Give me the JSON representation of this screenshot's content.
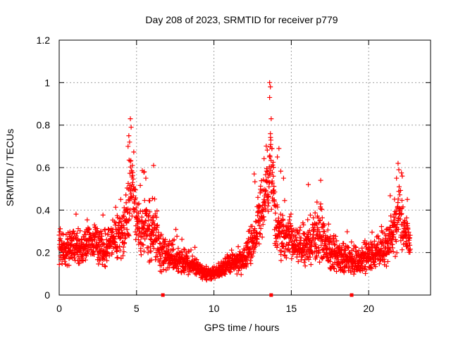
{
  "chart_data": {
    "type": "scatter",
    "title": "Day 208 of 2023, SRMTID for receiver p779",
    "xlabel": "GPS time / hours",
    "ylabel": "SRMTID / TECUs",
    "xlim": [
      0,
      24
    ],
    "ylim": [
      0,
      1.2
    ],
    "xticks": [
      0,
      5,
      10,
      15,
      20
    ],
    "xtick_labels": [
      "0",
      "5",
      "10",
      "15",
      "20"
    ],
    "yticks": [
      0,
      0.2,
      0.4,
      0.6,
      0.8,
      1.0,
      1.2
    ],
    "ytick_labels": [
      "0",
      "0.2",
      "0.4",
      "0.6",
      "0.8",
      "1",
      "1.2"
    ],
    "grid": true,
    "marker": "plus",
    "zero_marker": "square",
    "color": "#ff0000",
    "series": [
      {
        "name": "SRMTID",
        "sampling_hours": 0.01,
        "profile": {
          "x": [
            0,
            0.5,
            1,
            1.5,
            2,
            2.5,
            3,
            3.5,
            4,
            4.3,
            4.5,
            4.7,
            5,
            5.3,
            5.5,
            6,
            6.2,
            6.5,
            7,
            7.5,
            8,
            8.5,
            9,
            9.5,
            10,
            10.5,
            11,
            11.5,
            12,
            12.5,
            13,
            13.3,
            13.5,
            13.7,
            14,
            14.3,
            14.5,
            15,
            15.5,
            16,
            16.3,
            16.5,
            17,
            17.5,
            18,
            18.5,
            19,
            19.5,
            20,
            20.5,
            21,
            21.5,
            21.8,
            22,
            22.3,
            22.7
          ],
          "y": [
            0.2,
            0.22,
            0.23,
            0.22,
            0.25,
            0.24,
            0.22,
            0.26,
            0.28,
            0.33,
            0.43,
            0.5,
            0.35,
            0.3,
            0.33,
            0.28,
            0.3,
            0.2,
            0.18,
            0.17,
            0.16,
            0.15,
            0.12,
            0.1,
            0.1,
            0.12,
            0.15,
            0.15,
            0.17,
            0.25,
            0.38,
            0.48,
            0.55,
            0.6,
            0.32,
            0.3,
            0.28,
            0.25,
            0.22,
            0.22,
            0.25,
            0.28,
            0.26,
            0.2,
            0.18,
            0.17,
            0.15,
            0.17,
            0.18,
            0.2,
            0.22,
            0.28,
            0.32,
            0.42,
            0.3,
            0.25
          ],
          "spread": [
            0.1,
            0.1,
            0.1,
            0.08,
            0.1,
            0.1,
            0.1,
            0.1,
            0.12,
            0.15,
            0.2,
            0.18,
            0.12,
            0.15,
            0.15,
            0.15,
            0.15,
            0.1,
            0.08,
            0.08,
            0.07,
            0.06,
            0.04,
            0.03,
            0.03,
            0.04,
            0.05,
            0.06,
            0.07,
            0.1,
            0.15,
            0.25,
            0.25,
            0.25,
            0.12,
            0.15,
            0.12,
            0.1,
            0.08,
            0.1,
            0.12,
            0.15,
            0.12,
            0.1,
            0.08,
            0.08,
            0.07,
            0.08,
            0.08,
            0.08,
            0.1,
            0.12,
            0.15,
            0.2,
            0.1,
            0.08
          ]
        },
        "peaks": [
          {
            "x": 4.6,
            "y": 0.83
          },
          {
            "x": 4.5,
            "y": 0.75
          },
          {
            "x": 4.55,
            "y": 0.72
          },
          {
            "x": 4.45,
            "y": 0.7
          },
          {
            "x": 4.65,
            "y": 0.79
          },
          {
            "x": 4.6,
            "y": 0.63
          },
          {
            "x": 5.5,
            "y": 0.58
          },
          {
            "x": 6.1,
            "y": 0.61
          },
          {
            "x": 5.6,
            "y": 0.55
          },
          {
            "x": 12.6,
            "y": 0.57
          },
          {
            "x": 13.6,
            "y": 1.0
          },
          {
            "x": 13.65,
            "y": 0.98
          },
          {
            "x": 13.6,
            "y": 0.93
          },
          {
            "x": 13.7,
            "y": 0.83
          },
          {
            "x": 13.65,
            "y": 0.76
          },
          {
            "x": 13.75,
            "y": 0.69
          },
          {
            "x": 14.2,
            "y": 0.69
          },
          {
            "x": 14.1,
            "y": 0.65
          },
          {
            "x": 14.5,
            "y": 0.55
          },
          {
            "x": 16.1,
            "y": 0.52
          },
          {
            "x": 16.9,
            "y": 0.54
          },
          {
            "x": 21.9,
            "y": 0.62
          },
          {
            "x": 21.95,
            "y": 0.59
          },
          {
            "x": 21.8,
            "y": 0.55
          },
          {
            "x": 22.5,
            "y": 0.45
          }
        ]
      },
      {
        "name": "zero values",
        "x": [
          6.7,
          13.7,
          18.9
        ],
        "y": [
          0,
          0,
          0
        ]
      }
    ]
  }
}
